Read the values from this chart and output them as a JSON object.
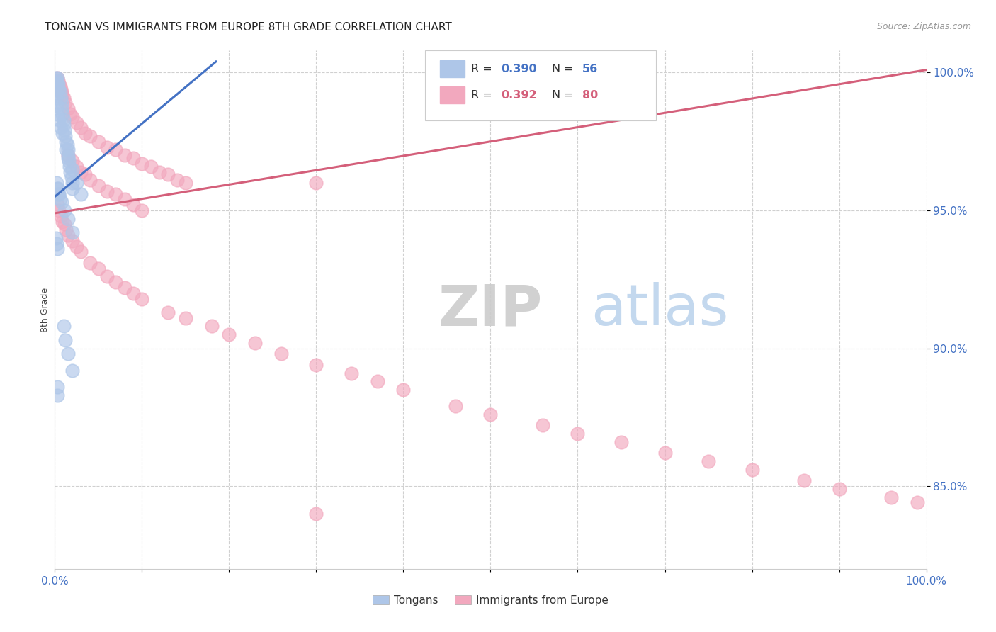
{
  "title": "TONGAN VS IMMIGRANTS FROM EUROPE 8TH GRADE CORRELATION CHART",
  "source": "Source: ZipAtlas.com",
  "ylabel": "8th Grade",
  "x_min": 0.0,
  "x_max": 1.0,
  "y_min": 0.82,
  "y_max": 1.008,
  "y_ticks": [
    0.85,
    0.9,
    0.95,
    1.0
  ],
  "y_tick_labels": [
    "85.0%",
    "90.0%",
    "95.0%",
    "100.0%"
  ],
  "blue_color": "#4472c4",
  "pink_color": "#d45f7a",
  "blue_scatter_color": "#aec6e8",
  "pink_scatter_color": "#f2a8be",
  "grid_color": "#d0d0d0",
  "background_color": "#ffffff",
  "title_fontsize": 11,
  "axis_label_color": "#444444",
  "tick_color": "#4472c4",
  "blue_line_x": [
    0.0,
    0.185
  ],
  "blue_line_y": [
    0.955,
    1.004
  ],
  "pink_line_x": [
    0.0,
    1.0
  ],
  "pink_line_y": [
    0.949,
    1.001
  ],
  "blue_scatter_x": [
    0.001,
    0.002,
    0.003,
    0.003,
    0.003,
    0.004,
    0.005,
    0.006,
    0.007,
    0.008,
    0.008,
    0.009,
    0.01,
    0.01,
    0.011,
    0.012,
    0.013,
    0.014,
    0.015,
    0.015,
    0.016,
    0.017,
    0.018,
    0.019,
    0.02,
    0.02,
    0.001,
    0.002,
    0.003,
    0.005,
    0.007,
    0.009,
    0.013,
    0.015,
    0.02,
    0.025,
    0.03,
    0.002,
    0.003,
    0.005,
    0.008,
    0.011,
    0.015,
    0.02,
    0.001,
    0.002,
    0.003,
    0.01,
    0.012,
    0.015,
    0.02,
    0.003,
    0.003,
    0.004,
    0.005,
    0.006
  ],
  "blue_scatter_y": [
    0.998,
    0.997,
    0.998,
    0.996,
    0.994,
    0.996,
    0.994,
    0.993,
    0.991,
    0.989,
    0.987,
    0.985,
    0.983,
    0.981,
    0.979,
    0.977,
    0.975,
    0.974,
    0.972,
    0.97,
    0.968,
    0.966,
    0.964,
    0.962,
    0.96,
    0.958,
    0.991,
    0.988,
    0.985,
    0.983,
    0.98,
    0.978,
    0.972,
    0.969,
    0.965,
    0.96,
    0.956,
    0.96,
    0.958,
    0.956,
    0.953,
    0.95,
    0.947,
    0.942,
    0.94,
    0.938,
    0.936,
    0.908,
    0.903,
    0.898,
    0.892,
    0.886,
    0.883,
    0.958,
    0.956,
    0.954
  ],
  "pink_scatter_x": [
    0.003,
    0.004,
    0.005,
    0.006,
    0.007,
    0.008,
    0.009,
    0.01,
    0.012,
    0.015,
    0.018,
    0.02,
    0.025,
    0.03,
    0.035,
    0.04,
    0.05,
    0.06,
    0.07,
    0.08,
    0.09,
    0.1,
    0.11,
    0.12,
    0.13,
    0.14,
    0.15,
    0.015,
    0.02,
    0.025,
    0.03,
    0.035,
    0.04,
    0.05,
    0.06,
    0.07,
    0.08,
    0.09,
    0.1,
    0.003,
    0.005,
    0.007,
    0.009,
    0.011,
    0.013,
    0.015,
    0.02,
    0.025,
    0.03,
    0.04,
    0.05,
    0.06,
    0.07,
    0.08,
    0.09,
    0.1,
    0.13,
    0.15,
    0.18,
    0.2,
    0.23,
    0.26,
    0.3,
    0.34,
    0.37,
    0.4,
    0.46,
    0.5,
    0.56,
    0.6,
    0.65,
    0.7,
    0.75,
    0.8,
    0.86,
    0.9,
    0.96,
    0.99,
    0.3,
    0.3
  ],
  "pink_scatter_y": [
    0.998,
    0.997,
    0.996,
    0.995,
    0.994,
    0.993,
    0.992,
    0.991,
    0.989,
    0.987,
    0.985,
    0.984,
    0.982,
    0.98,
    0.978,
    0.977,
    0.975,
    0.973,
    0.972,
    0.97,
    0.969,
    0.967,
    0.966,
    0.964,
    0.963,
    0.961,
    0.96,
    0.97,
    0.968,
    0.966,
    0.964,
    0.963,
    0.961,
    0.959,
    0.957,
    0.956,
    0.954,
    0.952,
    0.95,
    0.952,
    0.95,
    0.948,
    0.946,
    0.945,
    0.943,
    0.941,
    0.939,
    0.937,
    0.935,
    0.931,
    0.929,
    0.926,
    0.924,
    0.922,
    0.92,
    0.918,
    0.913,
    0.911,
    0.908,
    0.905,
    0.902,
    0.898,
    0.894,
    0.891,
    0.888,
    0.885,
    0.879,
    0.876,
    0.872,
    0.869,
    0.866,
    0.862,
    0.859,
    0.856,
    0.852,
    0.849,
    0.846,
    0.844,
    0.96,
    0.84
  ]
}
